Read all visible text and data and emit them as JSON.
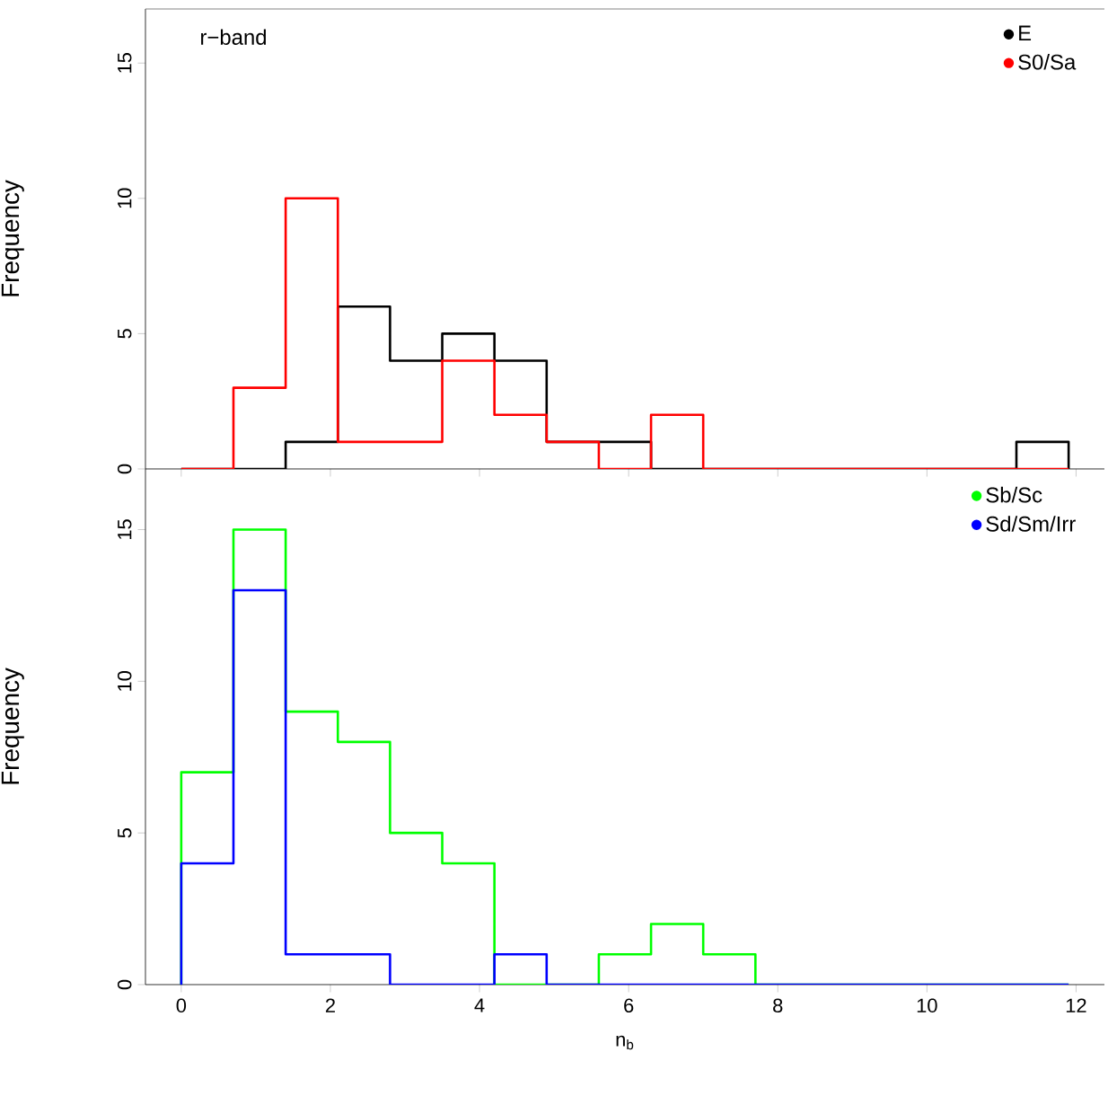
{
  "chart_data": [
    {
      "type": "histogram",
      "bins": [
        0,
        0.7,
        1.4,
        2.1,
        2.8,
        3.5,
        4.2,
        4.9,
        5.6,
        6.3,
        7.0,
        7.7,
        8.4,
        9.1,
        9.8,
        10.5,
        11.2,
        11.9
      ],
      "series": [
        {
          "name": "E",
          "color": "#000000",
          "values": [
            0,
            0,
            1,
            6,
            4,
            5,
            4,
            1,
            1,
            0,
            0,
            0,
            0,
            0,
            0,
            0,
            1
          ]
        },
        {
          "name": "S0/Sa",
          "color": "#ff0000",
          "values": [
            0,
            3,
            10,
            1,
            1,
            4,
            2,
            1,
            0,
            2,
            0,
            0,
            0,
            0,
            0,
            0,
            0
          ]
        }
      ],
      "xlim": [
        -0.48,
        12.38
      ],
      "ylim": [
        0,
        17
      ],
      "xticks": [
        0,
        2,
        4,
        6,
        8,
        10,
        12
      ],
      "yticks": [
        0,
        5,
        10,
        15
      ],
      "tick_labels": "y",
      "ylabel": "Frequency",
      "annotations": [
        "r−band"
      ],
      "legend": "top right"
    },
    {
      "type": "histogram",
      "bins": [
        0,
        0.7,
        1.4,
        2.1,
        2.8,
        3.5,
        4.2,
        4.9,
        5.6,
        6.3,
        7.0,
        7.7,
        8.4,
        9.1,
        9.8,
        10.5,
        11.2,
        11.9
      ],
      "series": [
        {
          "name": "Sb/Sc",
          "color": "#00ff00",
          "values": [
            7,
            15,
            9,
            8,
            5,
            4,
            0,
            0,
            1,
            2,
            1,
            0,
            0,
            0,
            0,
            0,
            0
          ]
        },
        {
          "name": "Sd/Sm/Irr",
          "color": "#0000ff",
          "values": [
            4,
            13,
            1,
            1,
            0,
            0,
            1,
            0,
            0,
            0,
            0,
            0,
            0,
            0,
            0,
            0,
            0
          ]
        }
      ],
      "xlim": [
        -0.48,
        12.38
      ],
      "ylim": [
        0,
        17
      ],
      "xticks": [
        0,
        2,
        4,
        6,
        8,
        10,
        12
      ],
      "yticks": [
        0,
        5,
        10,
        15
      ],
      "xlabel": "n$_{b}$",
      "ylabel": "Frequency",
      "legend": "top right"
    }
  ]
}
